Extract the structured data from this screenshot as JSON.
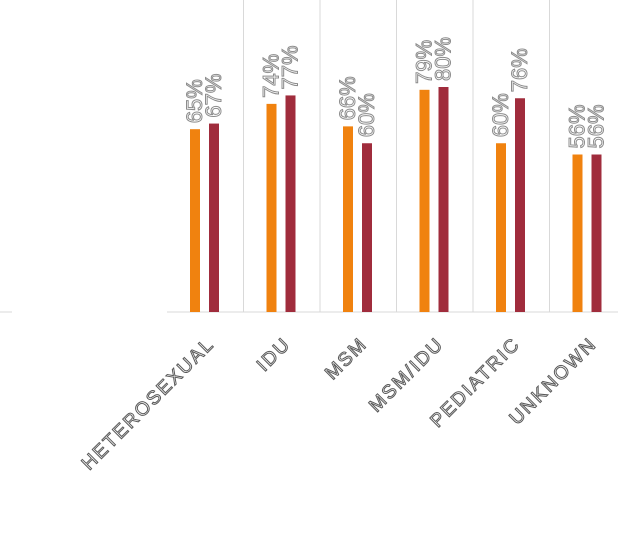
{
  "chart_data": {
    "type": "bar",
    "categories": [
      "HETEROSEXUAL",
      "IDU",
      "MSM",
      "MSM/IDU",
      "PEDIATRIC",
      "UNKNOWN"
    ],
    "series": [
      {
        "values": [
          65,
          74,
          66,
          79,
          60,
          56
        ],
        "color": "#f0820f"
      },
      {
        "values": [
          67,
          77,
          60,
          80,
          76,
          56
        ],
        "color": "#a02c3c"
      }
    ],
    "data_labels": [
      [
        "65%",
        "74%",
        "66%",
        "79%",
        "60%",
        "56%"
      ],
      [
        "67%",
        "77%",
        "60%",
        "80%",
        "76%",
        "56%"
      ]
    ],
    "ylim": [
      0,
      100
    ],
    "grid": "vertical separators between categories",
    "legend": "none visible"
  }
}
